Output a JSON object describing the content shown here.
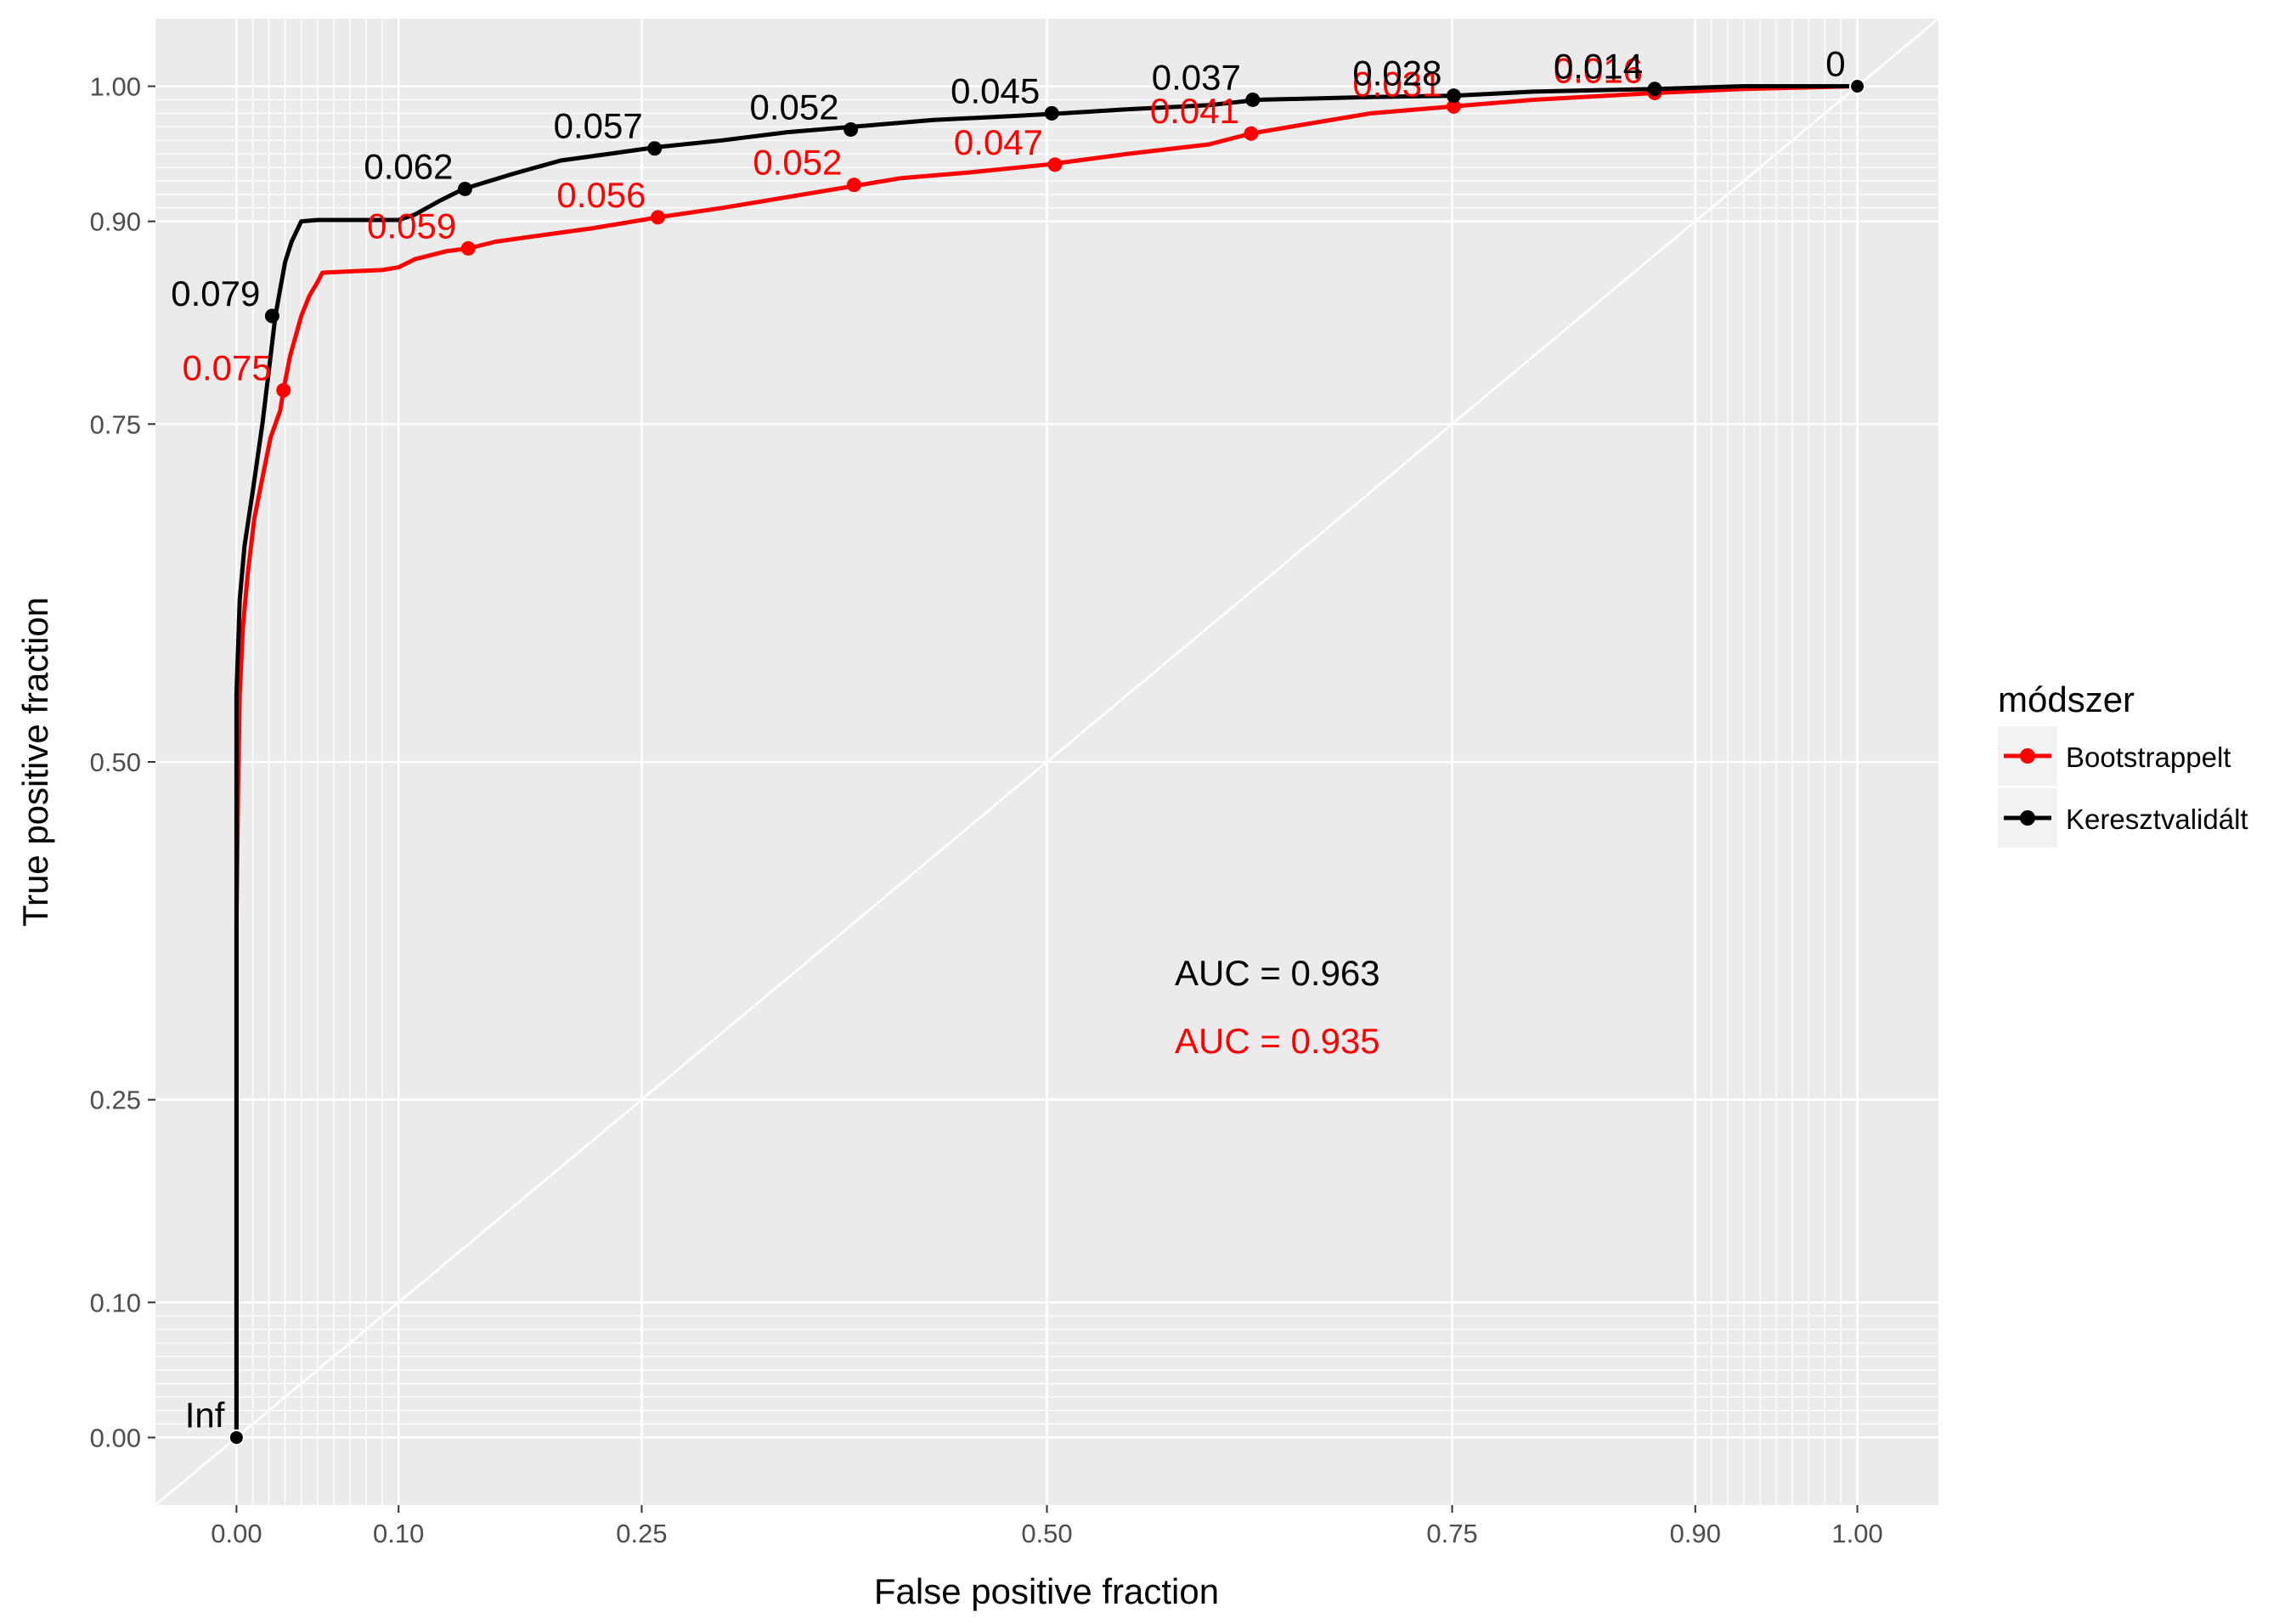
{
  "chart_data": {
    "type": "line",
    "title": "",
    "xlabel": "False positive fraction",
    "ylabel": "True positive fraction",
    "xlim": [
      -0.05,
      1.05
    ],
    "ylim": [
      -0.05,
      1.05
    ],
    "x_ticks": [
      0.0,
      0.1,
      0.25,
      0.5,
      0.75,
      0.9,
      1.0
    ],
    "x_tick_labels": [
      "0.00",
      "0.10",
      "0.25",
      "0.50",
      "0.75",
      "0.90",
      "1.00"
    ],
    "y_ticks": [
      0.0,
      0.1,
      0.25,
      0.5,
      0.75,
      0.9,
      1.0
    ],
    "y_tick_labels": [
      "0.00",
      "0.10",
      "0.25",
      "0.50",
      "0.75",
      "0.90",
      "1.00"
    ],
    "x_minor_grid": [
      0.01,
      0.02,
      0.03,
      0.04,
      0.05,
      0.06,
      0.07,
      0.08,
      0.09,
      0.91,
      0.92,
      0.93,
      0.94,
      0.95,
      0.96,
      0.97,
      0.98,
      0.99
    ],
    "y_minor_grid": [
      0.01,
      0.02,
      0.03,
      0.04,
      0.05,
      0.06,
      0.07,
      0.08,
      0.09,
      0.91,
      0.92,
      0.93,
      0.94,
      0.95,
      0.96,
      0.97,
      0.98,
      0.99
    ],
    "grid": true,
    "reference_line": [
      [
        -0.05,
        -0.05
      ],
      [
        1.05,
        1.05
      ]
    ],
    "legend": {
      "title": "módszer",
      "position": "right"
    },
    "series": [
      {
        "name": "Bootstrappelt",
        "color": "#ff0000",
        "curve": [
          [
            0.0,
            0.0
          ],
          [
            0.0,
            0.38
          ],
          [
            0.001,
            0.48
          ],
          [
            0.002,
            0.55
          ],
          [
            0.004,
            0.6
          ],
          [
            0.007,
            0.64
          ],
          [
            0.011,
            0.68
          ],
          [
            0.016,
            0.71
          ],
          [
            0.021,
            0.74
          ],
          [
            0.027,
            0.76
          ],
          [
            0.029,
            0.775
          ],
          [
            0.033,
            0.8
          ],
          [
            0.04,
            0.83
          ],
          [
            0.045,
            0.845
          ],
          [
            0.05,
            0.855
          ],
          [
            0.053,
            0.862
          ],
          [
            0.07,
            0.863
          ],
          [
            0.09,
            0.864
          ],
          [
            0.1,
            0.866
          ],
          [
            0.11,
            0.872
          ],
          [
            0.13,
            0.878
          ],
          [
            0.143,
            0.88
          ],
          [
            0.16,
            0.885
          ],
          [
            0.19,
            0.89
          ],
          [
            0.22,
            0.895
          ],
          [
            0.26,
            0.903
          ],
          [
            0.3,
            0.91
          ],
          [
            0.34,
            0.918
          ],
          [
            0.38,
            0.926
          ],
          [
            0.41,
            0.932
          ],
          [
            0.45,
            0.936
          ],
          [
            0.5,
            0.942
          ],
          [
            0.55,
            0.95
          ],
          [
            0.6,
            0.957
          ],
          [
            0.626,
            0.965
          ],
          [
            0.66,
            0.972
          ],
          [
            0.7,
            0.98
          ],
          [
            0.75,
            0.985
          ],
          [
            0.8,
            0.99
          ],
          [
            0.875,
            0.995
          ],
          [
            0.93,
            0.998
          ],
          [
            1.0,
            1.0
          ]
        ],
        "cutoff_points": [
          {
            "x": 0.0,
            "y": 0.0,
            "label": ""
          },
          {
            "x": 0.029,
            "y": 0.775,
            "label": "0.075"
          },
          {
            "x": 0.143,
            "y": 0.88,
            "label": "0.059"
          },
          {
            "x": 0.26,
            "y": 0.903,
            "label": "0.056"
          },
          {
            "x": 0.381,
            "y": 0.927,
            "label": "0.052"
          },
          {
            "x": 0.505,
            "y": 0.942,
            "label": "0.047"
          },
          {
            "x": 0.626,
            "y": 0.965,
            "label": "0.041"
          },
          {
            "x": 0.751,
            "y": 0.985,
            "label": "0.031"
          },
          {
            "x": 0.875,
            "y": 0.995,
            "label": "0.016"
          },
          {
            "x": 1.0,
            "y": 1.0,
            "label": ""
          }
        ],
        "auc_label": "AUC = 0.935"
      },
      {
        "name": "Keresztvalidált",
        "color": "#000000",
        "curve": [
          [
            0.0,
            0.0
          ],
          [
            0.0,
            0.55
          ],
          [
            0.002,
            0.62
          ],
          [
            0.005,
            0.66
          ],
          [
            0.01,
            0.7
          ],
          [
            0.016,
            0.75
          ],
          [
            0.021,
            0.8
          ],
          [
            0.024,
            0.83
          ],
          [
            0.027,
            0.85
          ],
          [
            0.03,
            0.87
          ],
          [
            0.034,
            0.885
          ],
          [
            0.04,
            0.9
          ],
          [
            0.05,
            0.901
          ],
          [
            0.07,
            0.901
          ],
          [
            0.1,
            0.901
          ],
          [
            0.11,
            0.905
          ],
          [
            0.125,
            0.915
          ],
          [
            0.14,
            0.924
          ],
          [
            0.17,
            0.935
          ],
          [
            0.2,
            0.945
          ],
          [
            0.23,
            0.95
          ],
          [
            0.26,
            0.955
          ],
          [
            0.3,
            0.96
          ],
          [
            0.34,
            0.966
          ],
          [
            0.38,
            0.97
          ],
          [
            0.43,
            0.975
          ],
          [
            0.48,
            0.978
          ],
          [
            0.51,
            0.98
          ],
          [
            0.55,
            0.983
          ],
          [
            0.6,
            0.986
          ],
          [
            0.63,
            0.99
          ],
          [
            0.7,
            0.992
          ],
          [
            0.75,
            0.993
          ],
          [
            0.8,
            0.996
          ],
          [
            0.875,
            0.998
          ],
          [
            0.93,
            1.0
          ],
          [
            1.0,
            1.0
          ]
        ],
        "cutoff_points": [
          {
            "x": 0.0,
            "y": 0.0,
            "label": "Inf"
          },
          {
            "x": 0.022,
            "y": 0.83,
            "label": "0.079"
          },
          {
            "x": 0.141,
            "y": 0.924,
            "label": "0.062"
          },
          {
            "x": 0.258,
            "y": 0.954,
            "label": "0.057"
          },
          {
            "x": 0.379,
            "y": 0.968,
            "label": "0.052"
          },
          {
            "x": 0.503,
            "y": 0.98,
            "label": "0.045"
          },
          {
            "x": 0.627,
            "y": 0.99,
            "label": "0.037"
          },
          {
            "x": 0.751,
            "y": 0.993,
            "label": "0.028"
          },
          {
            "x": 0.875,
            "y": 0.998,
            "label": "0.014"
          },
          {
            "x": 1.0,
            "y": 1.0,
            "label": "0"
          }
        ],
        "auc_label": "AUC = 0.963"
      }
    ]
  }
}
